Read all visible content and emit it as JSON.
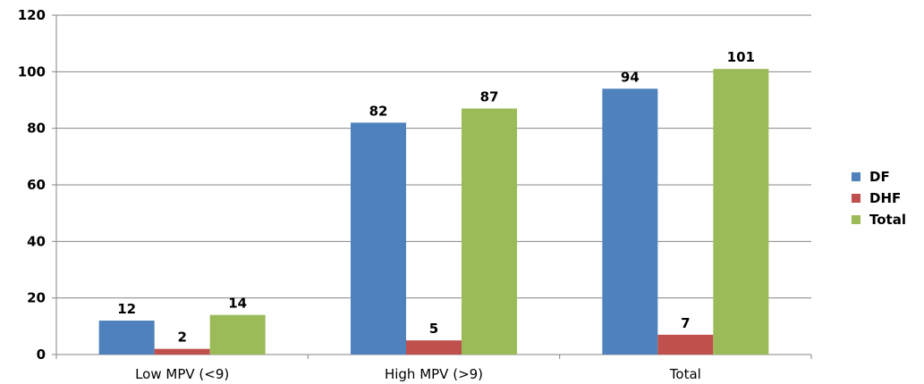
{
  "chart_data": {
    "type": "bar",
    "categories": [
      "Low MPV (<9)",
      "High MPV (>9)",
      "Total"
    ],
    "series": [
      {
        "name": "DF",
        "values": [
          12,
          82,
          94
        ],
        "color": "#4F81BD"
      },
      {
        "name": "DHF",
        "values": [
          2,
          5,
          7
        ],
        "color": "#C0504D"
      },
      {
        "name": "Total",
        "values": [
          14,
          87,
          101
        ],
        "color": "#9BBB59"
      }
    ],
    "ylim": [
      0,
      120
    ],
    "yticks": [
      0,
      20,
      40,
      60,
      80,
      100,
      120
    ],
    "grid": true,
    "legend_position": "right",
    "data_labels": true
  }
}
